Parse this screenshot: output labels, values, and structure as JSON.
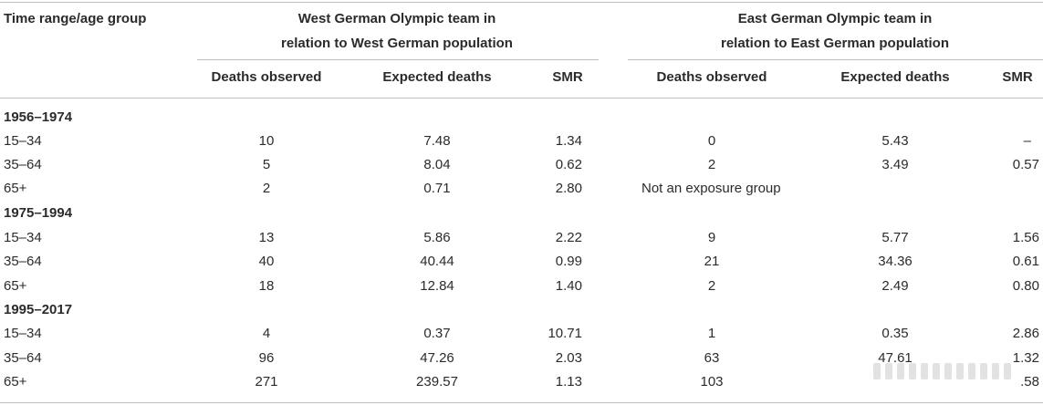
{
  "header": {
    "col0": "Time range/age group",
    "west_group_line1": "West German Olympic team in",
    "west_group_line2": "relation to West German population",
    "east_group_line1": "East German Olympic team in",
    "east_group_line2": "relation to East German population",
    "west_cols": [
      "Deaths observed",
      "Expected deaths",
      "SMR"
    ],
    "east_cols": [
      "Deaths observed",
      "Expected deaths",
      "SMR"
    ]
  },
  "sections": [
    {
      "title": "1956–1974",
      "rows": [
        {
          "age": "15–34",
          "w_obs": "10",
          "w_exp": "7.48",
          "w_smr": "1.34",
          "e_obs": "0",
          "e_exp": "5.43",
          "e_smr": "–"
        },
        {
          "age": "35–64",
          "w_obs": "5",
          "w_exp": "8.04",
          "w_smr": "0.62",
          "e_obs": "2",
          "e_exp": "3.49",
          "e_smr": "0.57"
        },
        {
          "age": "65+",
          "w_obs": "2",
          "w_exp": "0.71",
          "w_smr": "2.80",
          "e_note": "Not an exposure group"
        }
      ]
    },
    {
      "title": "1975–1994",
      "rows": [
        {
          "age": "15–34",
          "w_obs": "13",
          "w_exp": "5.86",
          "w_smr": "2.22",
          "e_obs": "9",
          "e_exp": "5.77",
          "e_smr": "1.56"
        },
        {
          "age": "35–64",
          "w_obs": "40",
          "w_exp": "40.44",
          "w_smr": "0.99",
          "e_obs": "21",
          "e_exp": "34.36",
          "e_smr": "0.61"
        },
        {
          "age": "65+",
          "w_obs": "18",
          "w_exp": "12.84",
          "w_smr": "1.40",
          "e_obs": "2",
          "e_exp": "2.49",
          "e_smr": "0.80"
        }
      ]
    },
    {
      "title": "1995–2017",
      "rows": [
        {
          "age": "15–34",
          "w_obs": "4",
          "w_exp": "0.37",
          "w_smr": "10.71",
          "e_obs": "1",
          "e_exp": "0.35",
          "e_smr": "2.86"
        },
        {
          "age": "35–64",
          "w_obs": "96",
          "w_exp": "47.26",
          "w_smr": "2.03",
          "e_obs": "63",
          "e_exp": "47.61",
          "e_smr": "1.32"
        },
        {
          "age": "65+",
          "w_obs": "271",
          "w_exp": "239.57",
          "w_smr": "1.13",
          "e_obs": "103",
          "e_exp": "",
          "e_smr": ".58"
        }
      ]
    }
  ]
}
